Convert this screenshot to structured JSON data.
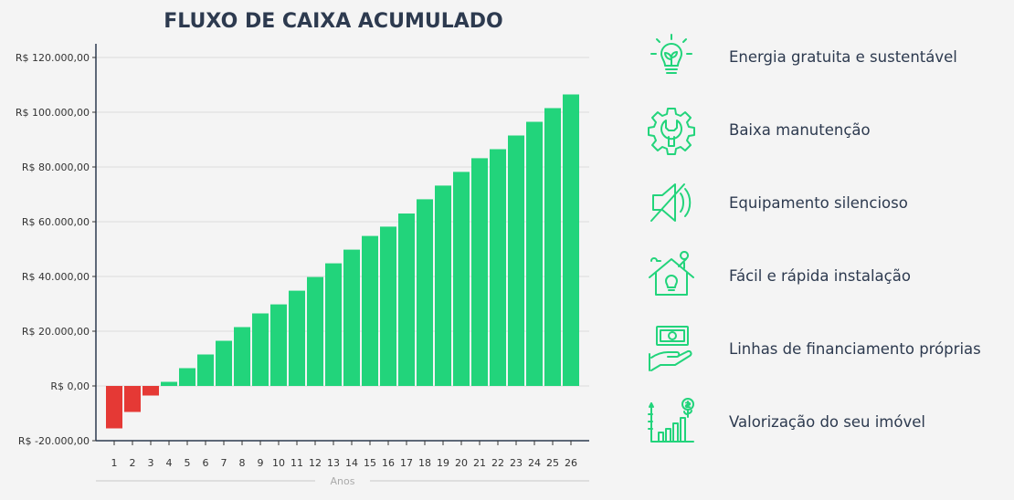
{
  "chart_data": {
    "type": "bar",
    "title": "FLUXO DE CAIXA ACUMULADO",
    "xlabel": "Anos",
    "ylabel": "",
    "ylim": [
      -20000,
      120000
    ],
    "yticks": [
      -20000,
      0,
      20000,
      40000,
      60000,
      80000,
      100000,
      120000
    ],
    "ytick_labels": [
      "R$ -20.000,00",
      "R$ 0,00",
      "R$ 20.000,00",
      "R$ 40.000,00",
      "R$ 60.000,00",
      "R$ 80.000,00",
      "R$ 100.000,00",
      "R$ 120.000,00"
    ],
    "grid": true,
    "categories": [
      "1",
      "2",
      "3",
      "4",
      "5",
      "6",
      "7",
      "8",
      "9",
      "10",
      "11",
      "12",
      "13",
      "14",
      "15",
      "16",
      "17",
      "18",
      "19",
      "20",
      "21",
      "22",
      "23",
      "24",
      "25",
      "26"
    ],
    "values": [
      -15500,
      -9500,
      -3500,
      1500,
      6500,
      11500,
      16500,
      21500,
      26500,
      29800,
      34800,
      39800,
      44800,
      49800,
      54800,
      58200,
      63000,
      68200,
      73200,
      78200,
      83200,
      86500,
      91500,
      96500,
      101500,
      106500
    ],
    "colors": {
      "negative": "#e53935",
      "positive": "#22d47b"
    }
  },
  "features": {
    "accent_color": "#22d47b",
    "items": [
      {
        "icon": "lightbulb-leaf-icon",
        "label": "Energia gratuita e sustentável"
      },
      {
        "icon": "gear-wrench-icon",
        "label": "Baixa manutenção"
      },
      {
        "icon": "speaker-mute-icon",
        "label": "Equipamento silencioso"
      },
      {
        "icon": "house-install-icon",
        "label": "Fácil e rápida instalação"
      },
      {
        "icon": "hand-money-icon",
        "label": "Linhas de financiamento próprias"
      },
      {
        "icon": "growth-chart-icon",
        "label": "Valorização do seu imóvel"
      }
    ]
  }
}
